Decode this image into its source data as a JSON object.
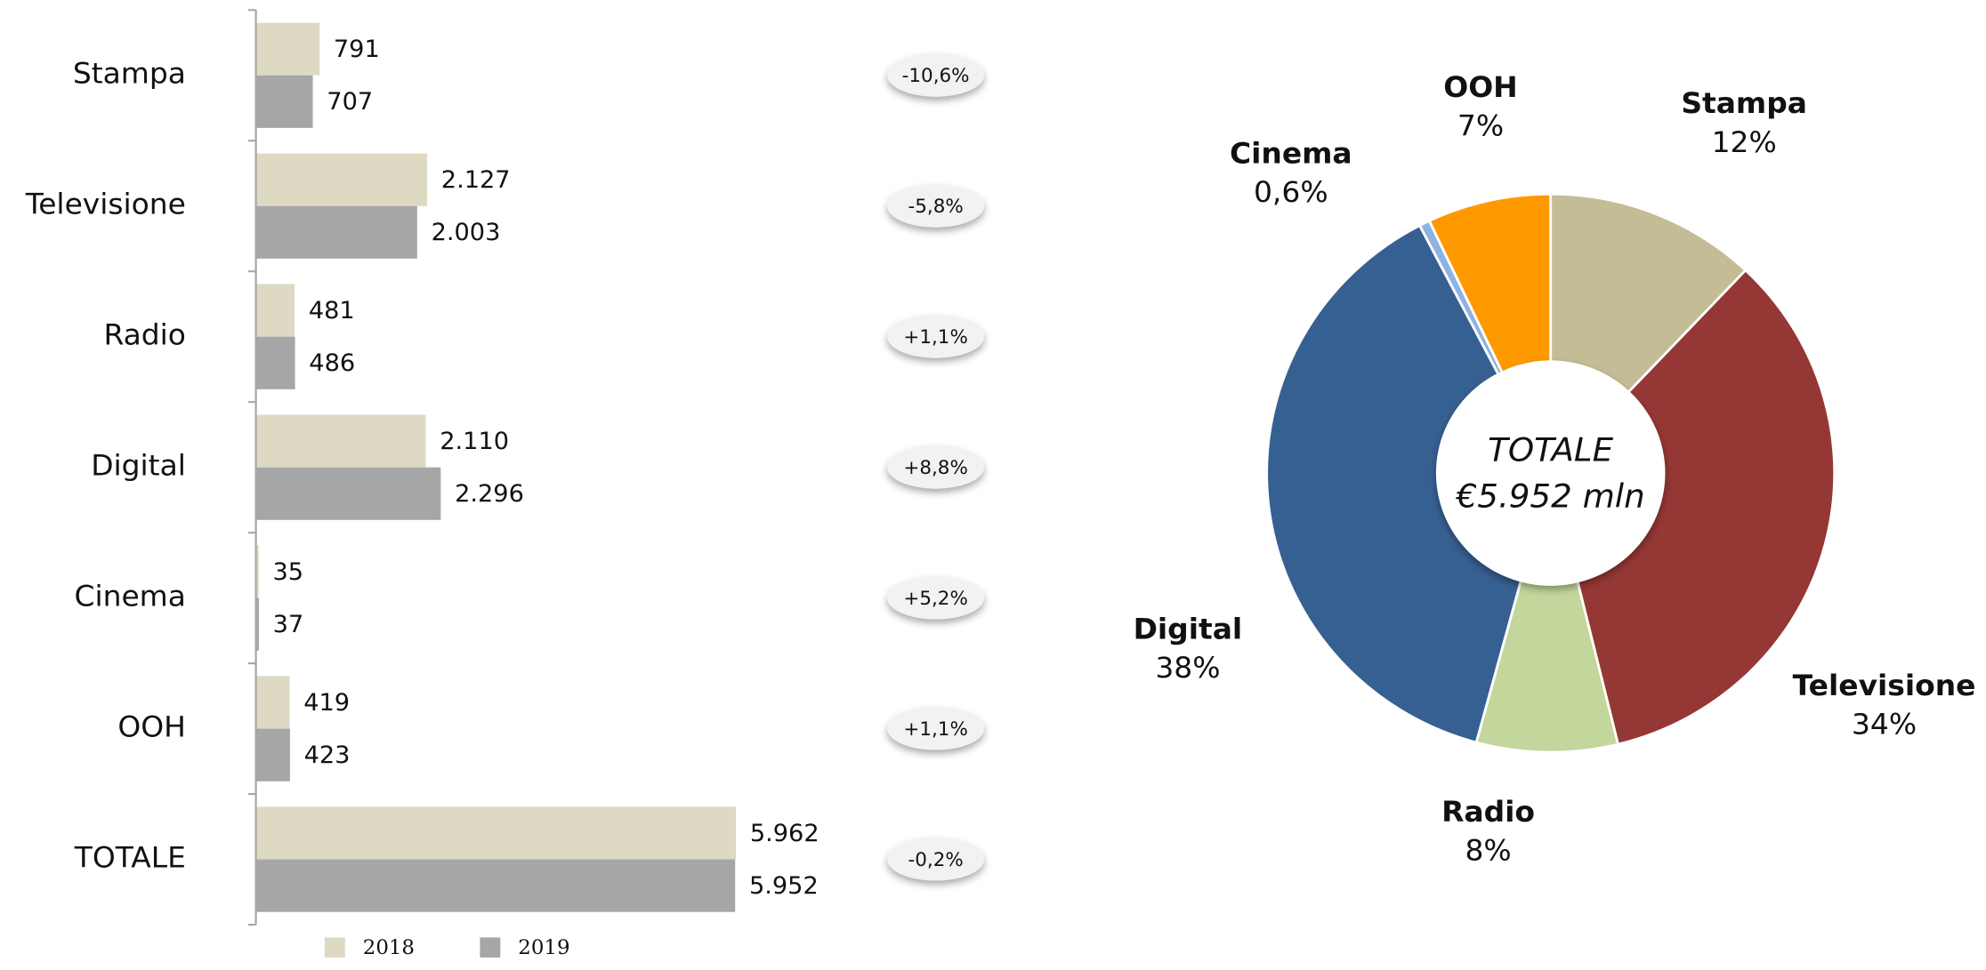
{
  "chart_data": [
    {
      "type": "bar",
      "orientation": "horizontal",
      "categories": [
        "Stampa",
        "Televisione",
        "Radio",
        "Digital",
        "Cinema",
        "OOH",
        "TOTALE"
      ],
      "series": [
        {
          "name": "2018",
          "color": "#ddd9c3",
          "values": [
            791,
            2127,
            481,
            2110,
            35,
            419,
            5962
          ],
          "value_labels": [
            "791",
            "2.127",
            "481",
            "2.110",
            "35",
            "419",
            "5.962"
          ]
        },
        {
          "name": "2019",
          "color": "#a6a6a6",
          "values": [
            707,
            2003,
            486,
            2296,
            37,
            423,
            5952
          ],
          "value_labels": [
            "707",
            "2.003",
            "486",
            "2.296",
            "37",
            "423",
            "5.952"
          ]
        }
      ],
      "change_labels": [
        "-10,6%",
        "-5,8%",
        "+1,1%",
        "+8,8%",
        "+5,2%",
        "+1,1%",
        "-0,2%"
      ],
      "xlim": [
        0,
        6000
      ]
    },
    {
      "type": "pie",
      "categories": [
        "Stampa",
        "Televisione",
        "Radio",
        "Digital",
        "Cinema",
        "OOH"
      ],
      "values": [
        12,
        34,
        8,
        38,
        0.6,
        7
      ],
      "value_labels": [
        "12%",
        "34%",
        "8%",
        "38%",
        "0,6%",
        "7%"
      ],
      "colors": [
        "#c4bc96",
        "#953735",
        "#c3d69b",
        "#376092",
        "#8db3e2",
        "#ff9900"
      ],
      "center_label": [
        "TOTALE",
        "€5.952 mln"
      ]
    }
  ]
}
